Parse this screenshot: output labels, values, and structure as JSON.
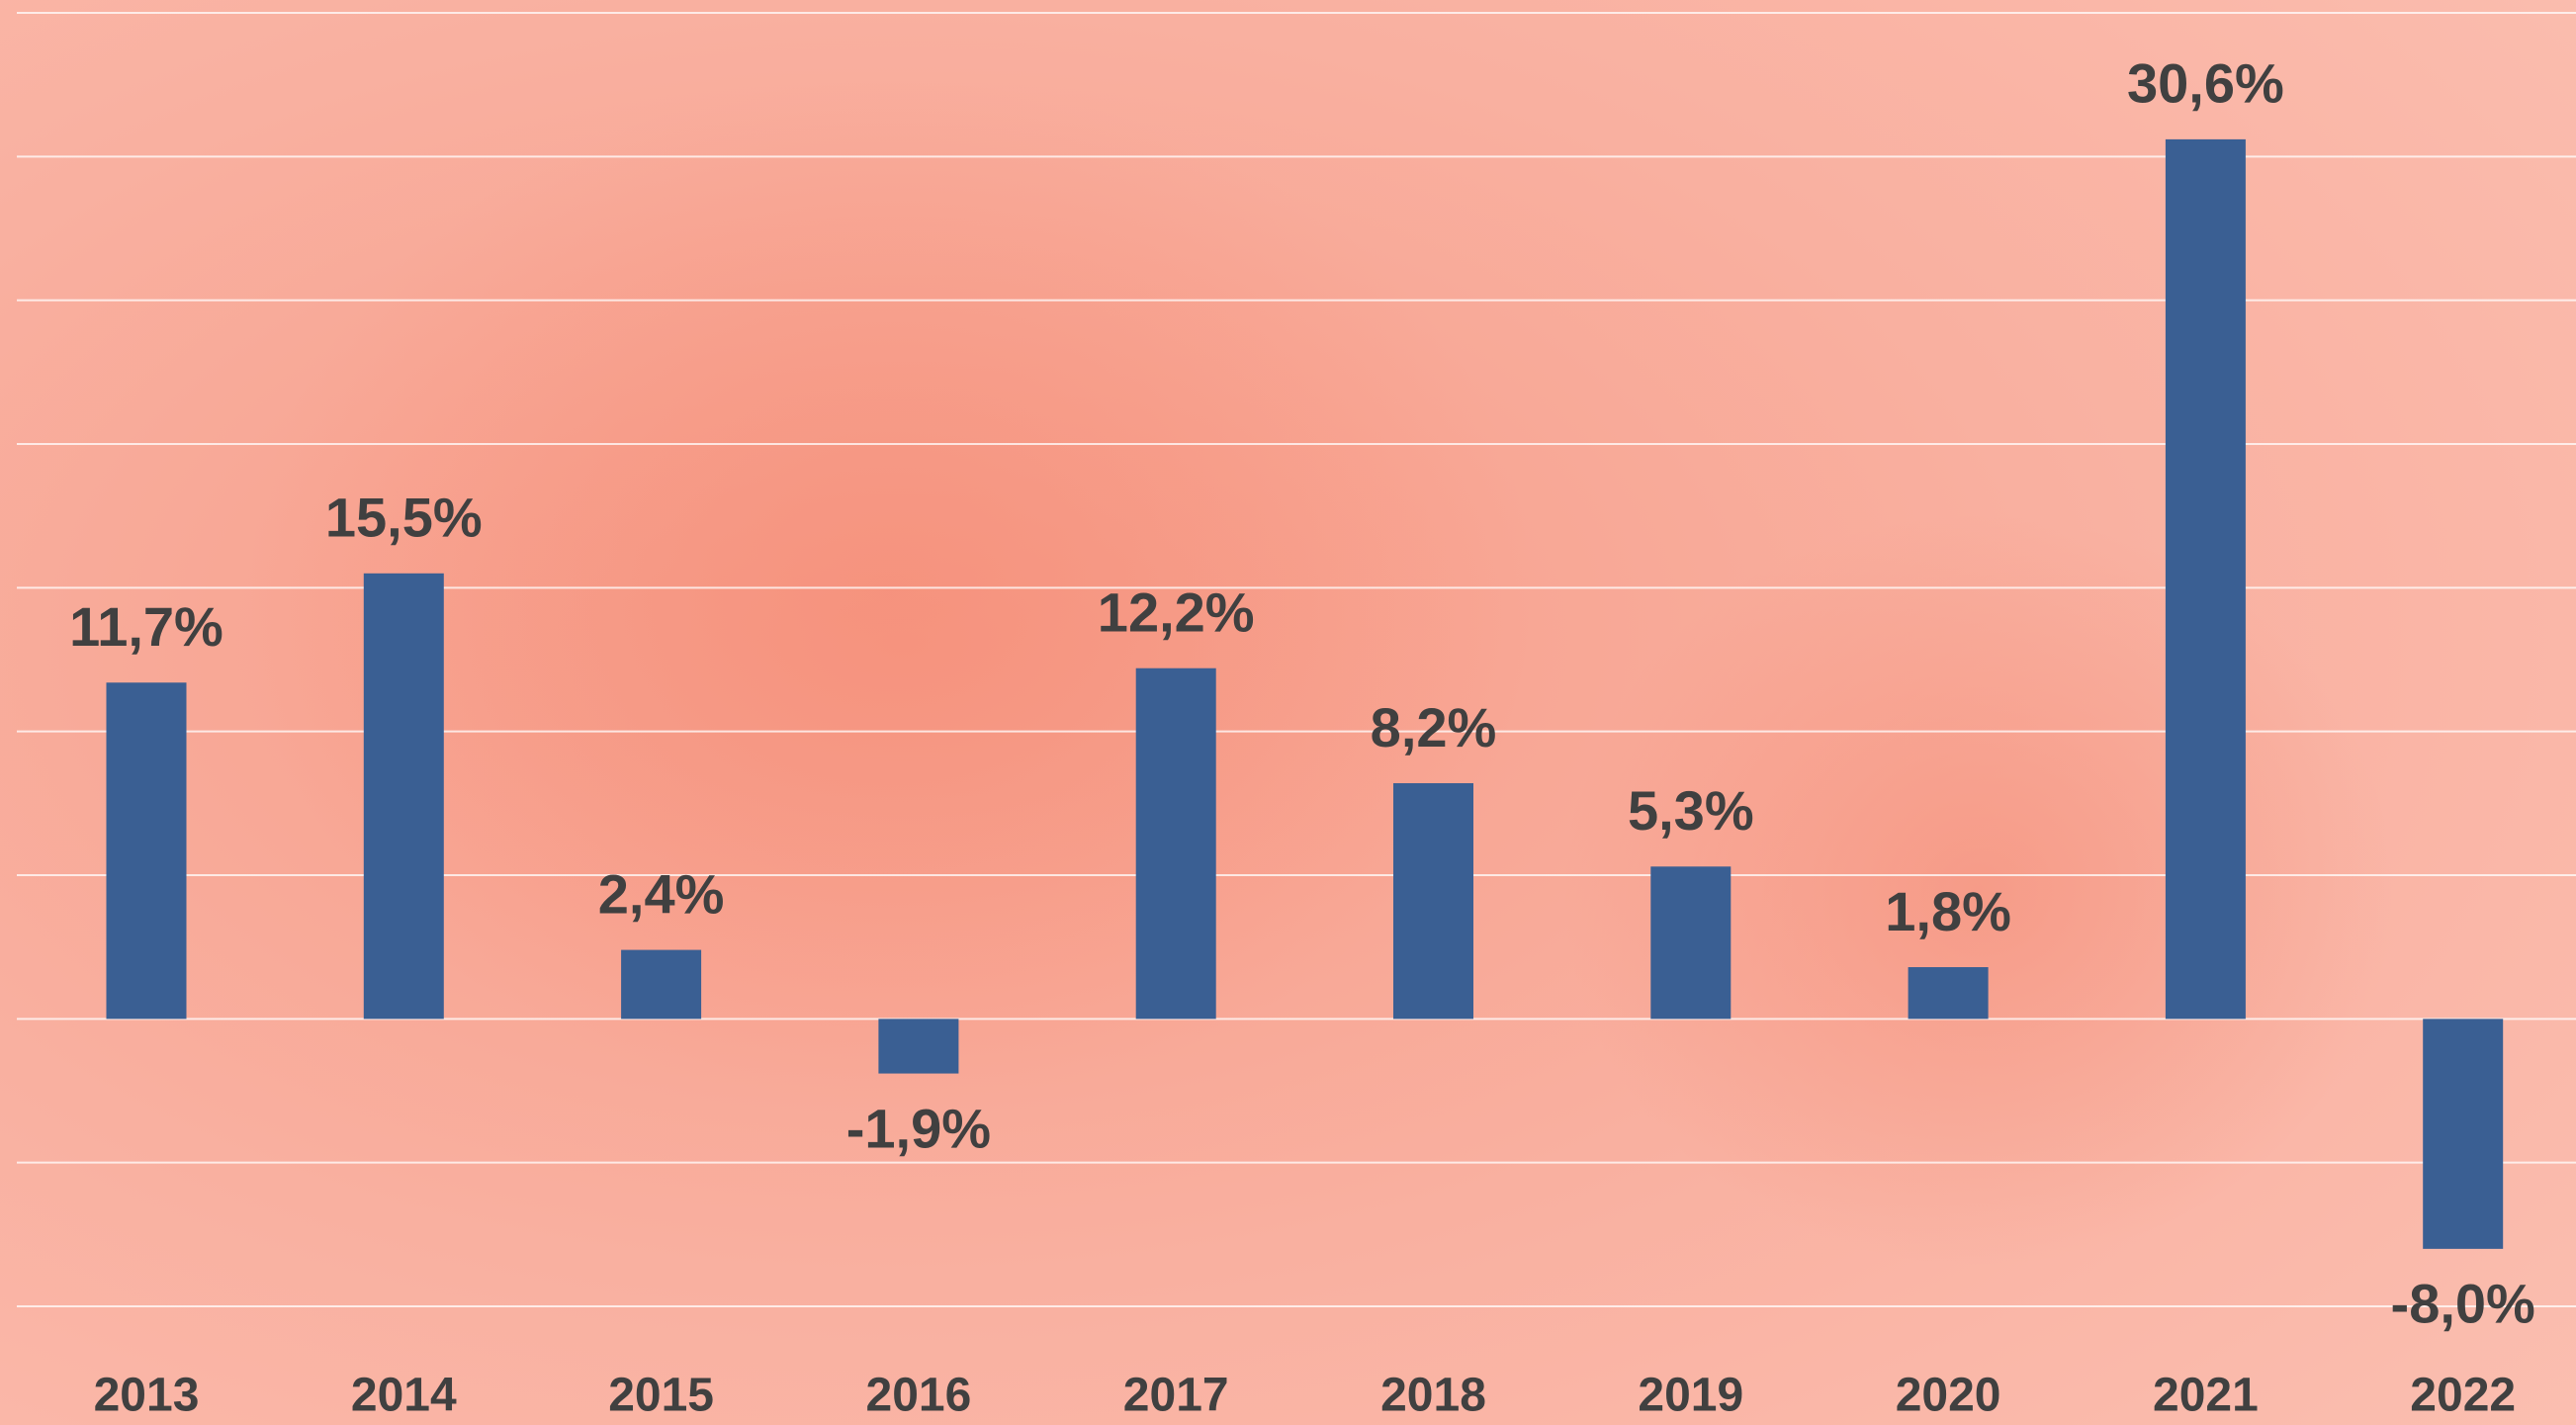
{
  "chart_data": {
    "type": "bar",
    "categories": [
      "2013",
      "2014",
      "2015",
      "2016",
      "2017",
      "2018",
      "2019",
      "2020",
      "2021",
      "2022"
    ],
    "values": [
      11.7,
      15.5,
      2.4,
      -1.9,
      12.2,
      8.2,
      5.3,
      1.8,
      30.6,
      -8.0
    ],
    "value_labels": [
      "11,7%",
      "15,5%",
      "2,4%",
      "-1,9%",
      "12,2%",
      "8,2%",
      "5,3%",
      "1,8%",
      "30,6%",
      "-8,0%"
    ],
    "color": "#3a5f93",
    "ylim": [
      -10,
      35
    ],
    "yticks": [
      -10,
      -5,
      0,
      5,
      10,
      15,
      20,
      25,
      30,
      35
    ],
    "grid": true
  }
}
